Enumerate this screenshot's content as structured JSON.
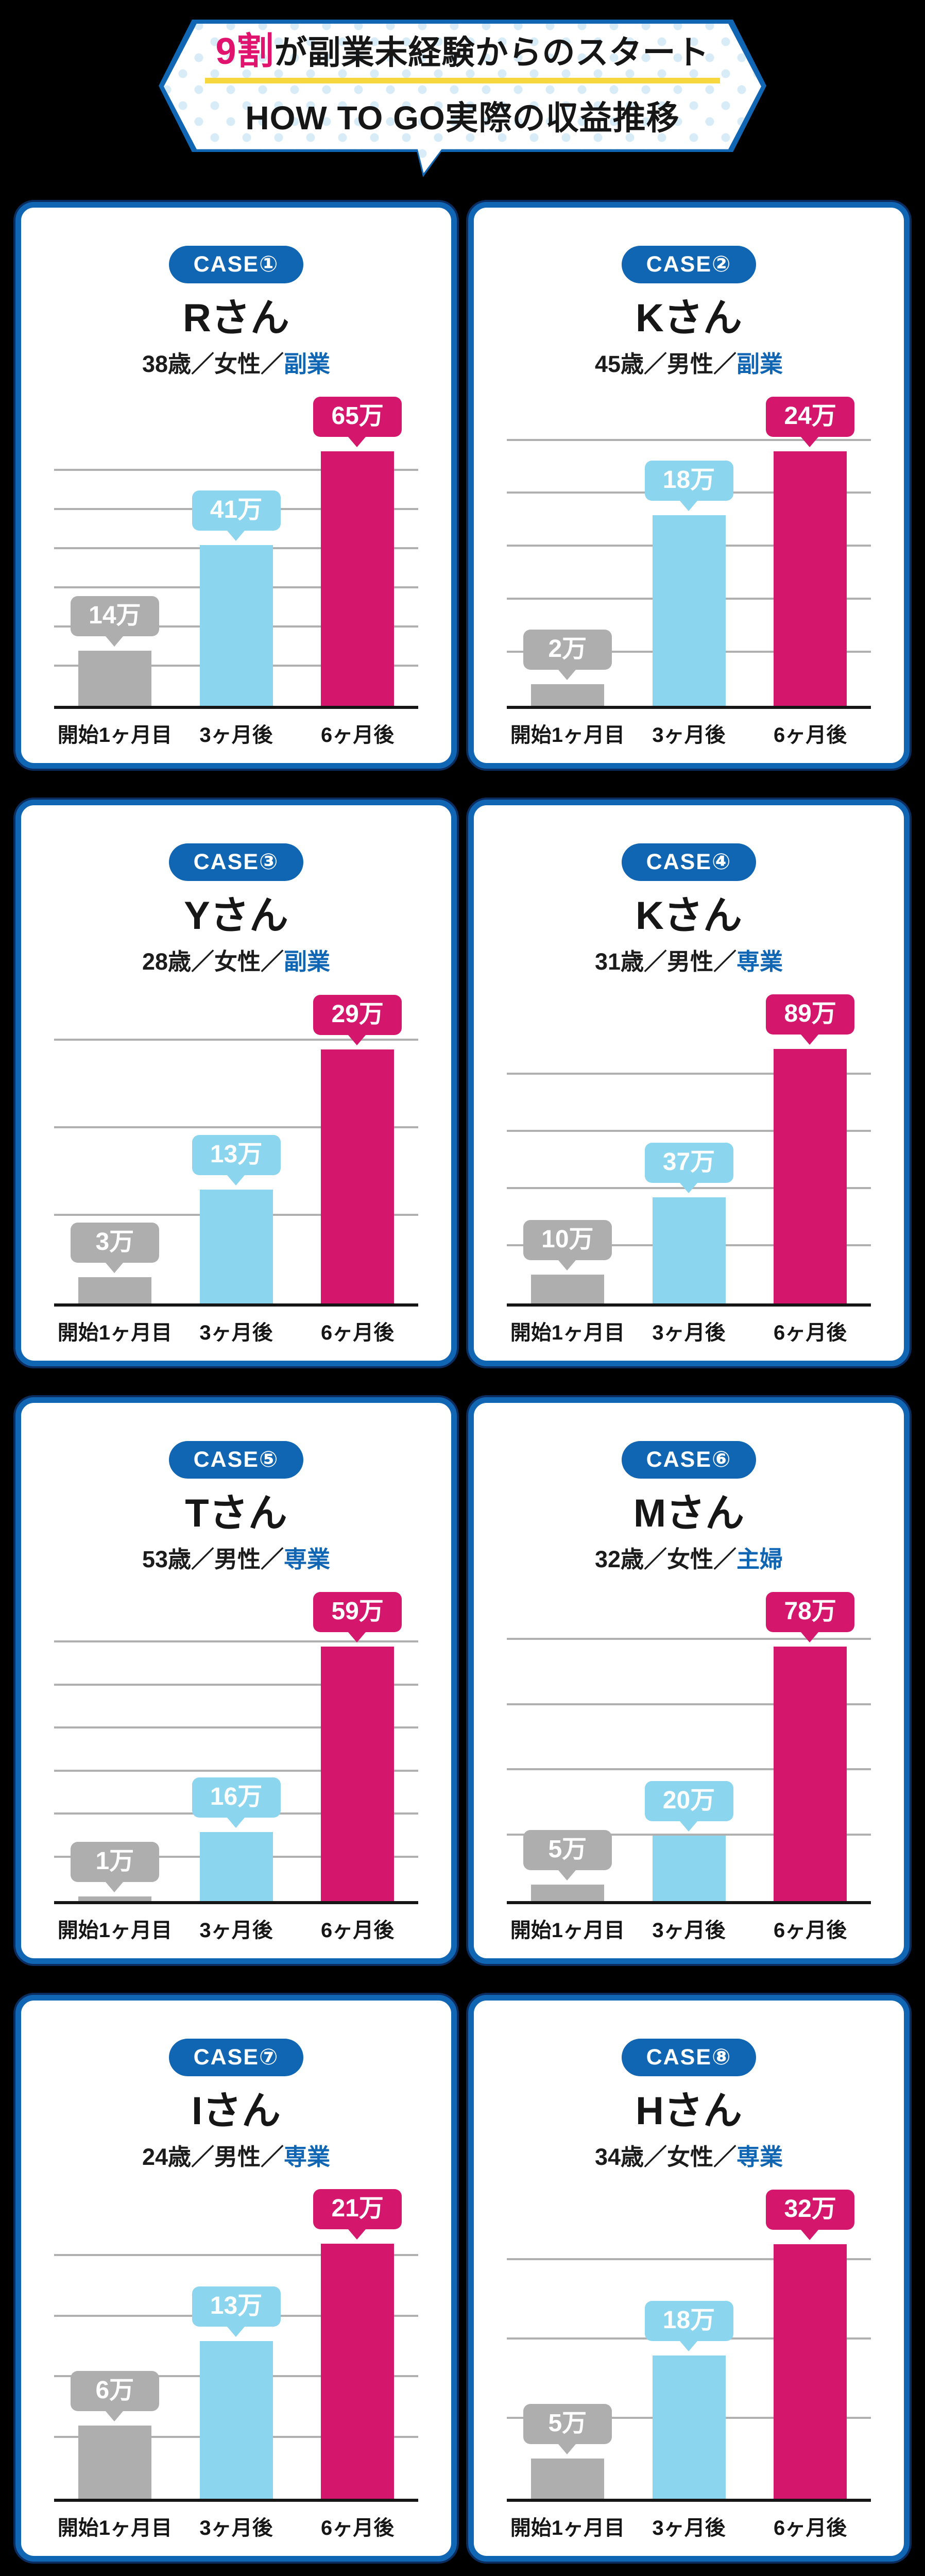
{
  "header": {
    "line1_highlight": "9割",
    "line1_rest": "が副業未経験からのスタート",
    "line2": "HOW TO GO実際の収益推移"
  },
  "colors": {
    "blue": "#1166b3",
    "blue-dark": "#0a2c5e",
    "pink": "#d4176c",
    "header-pink": "#e0146e",
    "cyan": "#8bd5ef",
    "gray": "#aeaeaf",
    "yellow": "#f7d73e",
    "grid": "#b0b0b0",
    "ink": "#161616",
    "dot": "#d8ecf8"
  },
  "chart_data": [
    {
      "type": "bar",
      "case_label": "CASE①",
      "person": "Rさん",
      "profile_prefix": "38歳／女性／",
      "profile_type": "副業",
      "categories": [
        "開始1ヶ月目",
        "3ヶ月後",
        "6ヶ月後"
      ],
      "values": [
        14,
        41,
        65
      ],
      "value_labels": [
        "14万",
        "41万",
        "65万"
      ],
      "ylim": [
        0,
        68.5
      ],
      "grid_step": 10,
      "grid": true,
      "legend": false,
      "bar_colors": [
        "#aeaeaf",
        "#8bd5ef",
        "#d4176c"
      ]
    },
    {
      "type": "bar",
      "case_label": "CASE②",
      "person": "Kさん",
      "profile_prefix": "45歳／男性／",
      "profile_type": "副業",
      "categories": [
        "開始1ヶ月目",
        "3ヶ月後",
        "6ヶ月後"
      ],
      "values": [
        2,
        18,
        24
      ],
      "value_labels": [
        "2万",
        "18万",
        "24万"
      ],
      "ylim": [
        0,
        25.3
      ],
      "grid_step": 5,
      "grid": true,
      "legend": false,
      "bar_colors": [
        "#aeaeaf",
        "#8bd5ef",
        "#d4176c"
      ]
    },
    {
      "type": "bar",
      "case_label": "CASE③",
      "person": "Yさん",
      "profile_prefix": "28歳／女性／",
      "profile_type": "副業",
      "categories": [
        "開始1ヶ月目",
        "3ヶ月後",
        "6ヶ月後"
      ],
      "values": [
        3,
        13,
        29
      ],
      "value_labels": [
        "3万",
        "13万",
        "29万"
      ],
      "ylim": [
        0,
        30.6
      ],
      "grid_step": 10,
      "grid": true,
      "legend": false,
      "bar_colors": [
        "#aeaeaf",
        "#8bd5ef",
        "#d4176c"
      ]
    },
    {
      "type": "bar",
      "case_label": "CASE④",
      "person": "Kさん",
      "profile_prefix": "31歳／男性／",
      "profile_type": "専業",
      "categories": [
        "開始1ヶ月目",
        "3ヶ月後",
        "6ヶ月後"
      ],
      "values": [
        10,
        37,
        89
      ],
      "value_labels": [
        "10万",
        "37万",
        "89万"
      ],
      "ylim": [
        0,
        93.8
      ],
      "grid_step": 20,
      "grid": true,
      "legend": false,
      "bar_colors": [
        "#aeaeaf",
        "#8bd5ef",
        "#d4176c"
      ]
    },
    {
      "type": "bar",
      "case_label": "CASE⑤",
      "person": "Tさん",
      "profile_prefix": "53歳／男性／",
      "profile_type": "専業",
      "categories": [
        "開始1ヶ月目",
        "3ヶ月後",
        "6ヶ月後"
      ],
      "values": [
        1,
        16,
        59
      ],
      "value_labels": [
        "1万",
        "16万",
        "59万"
      ],
      "ylim": [
        0,
        62.2
      ],
      "grid_step": 10,
      "grid": true,
      "legend": false,
      "bar_colors": [
        "#aeaeaf",
        "#8bd5ef",
        "#d4176c"
      ]
    },
    {
      "type": "bar",
      "case_label": "CASE⑥",
      "person": "Mさん",
      "profile_prefix": "32歳／女性／",
      "profile_type": "主婦",
      "categories": [
        "開始1ヶ月目",
        "3ヶ月後",
        "6ヶ月後"
      ],
      "values": [
        5,
        20,
        78
      ],
      "value_labels": [
        "5万",
        "20万",
        "78万"
      ],
      "ylim": [
        0,
        82.2
      ],
      "grid_step": 20,
      "grid": true,
      "legend": false,
      "bar_colors": [
        "#aeaeaf",
        "#8bd5ef",
        "#d4176c"
      ]
    },
    {
      "type": "bar",
      "case_label": "CASE⑦",
      "person": "Iさん",
      "profile_prefix": "24歳／男性／",
      "profile_type": "専業",
      "categories": [
        "開始1ヶ月目",
        "3ヶ月後",
        "6ヶ月後"
      ],
      "values": [
        6,
        13,
        21
      ],
      "value_labels": [
        "6万",
        "13万",
        "21万"
      ],
      "ylim": [
        0,
        22.1
      ],
      "grid_step": 5,
      "grid": true,
      "legend": false,
      "bar_colors": [
        "#aeaeaf",
        "#8bd5ef",
        "#d4176c"
      ]
    },
    {
      "type": "bar",
      "case_label": "CASE⑧",
      "person": "Hさん",
      "profile_prefix": "34歳／女性／",
      "profile_type": "専業",
      "categories": [
        "開始1ヶ月目",
        "3ヶ月後",
        "6ヶ月後"
      ],
      "values": [
        5,
        18,
        32
      ],
      "value_labels": [
        "5万",
        "18万",
        "32万"
      ],
      "ylim": [
        0,
        33.7
      ],
      "grid_step": 10,
      "grid": true,
      "legend": false,
      "bar_colors": [
        "#aeaeaf",
        "#8bd5ef",
        "#d4176c"
      ]
    }
  ]
}
